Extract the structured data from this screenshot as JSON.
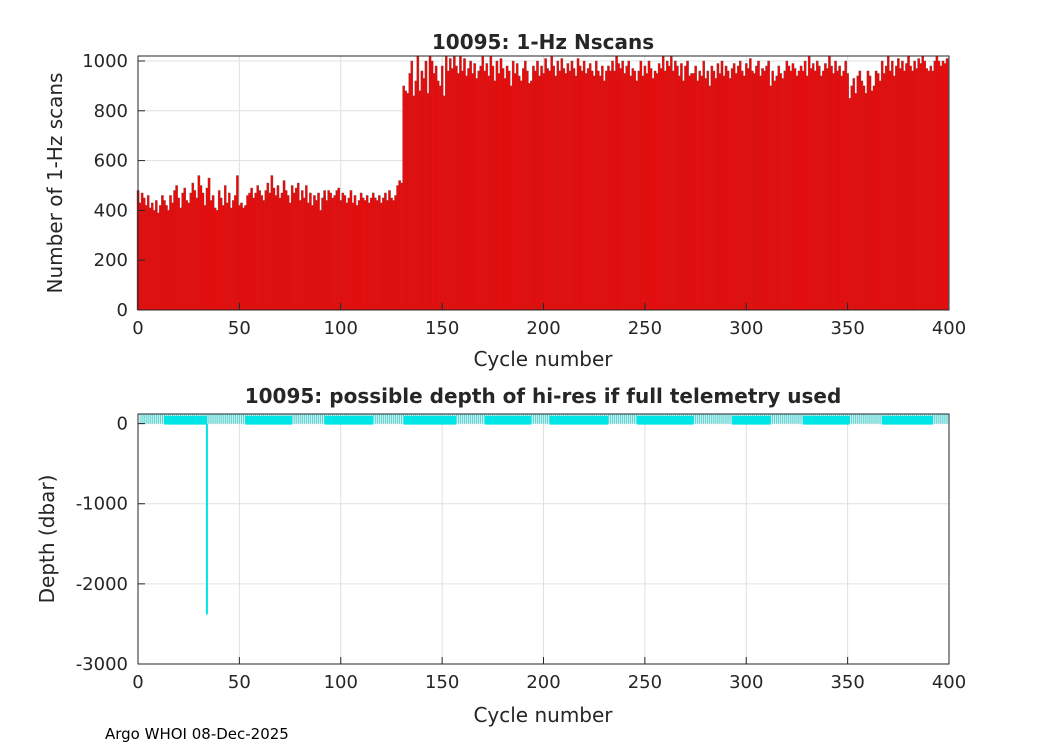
{
  "footer": "Argo WHOI 08-Dec-2025",
  "chart_data": [
    {
      "type": "bar",
      "title": "10095: 1-Hz Nscans",
      "xlabel": "Cycle number",
      "ylabel": "Number of 1-Hz scans",
      "xlim": [
        0,
        400
      ],
      "ylim": [
        0,
        1020
      ],
      "xticks": [
        "0",
        "50",
        "100",
        "150",
        "200",
        "250",
        "300",
        "350",
        "400"
      ],
      "yticks": [
        "0",
        "200",
        "400",
        "600",
        "800",
        "1000"
      ],
      "grid": true,
      "color": "#ff0000",
      "segments": [
        {
          "x_start": 0,
          "values": [
            480,
            430,
            470,
            450,
            420,
            460,
            410,
            430,
            400,
            440,
            390,
            420,
            460
          ]
        },
        {
          "x_start": 13,
          "values": [
            440,
            420,
            400,
            460,
            430,
            480,
            500,
            450,
            410,
            470,
            490,
            440,
            430,
            470,
            510,
            480,
            450,
            540,
            500,
            470,
            420,
            490,
            530,
            440,
            460,
            410,
            400
          ]
        },
        {
          "x_start": 40,
          "values": [
            480,
            450,
            420,
            500,
            430,
            470,
            410,
            440,
            460,
            540,
            420,
            430,
            410
          ]
        },
        {
          "x_start": 53,
          "values": [
            420,
            460,
            470,
            490,
            450,
            470,
            500,
            480,
            460,
            440,
            480,
            510,
            470,
            540,
            490,
            460,
            500,
            450,
            470,
            520,
            480,
            460,
            430
          ]
        },
        {
          "x_start": 76,
          "values": [
            500,
            470,
            490,
            510,
            440,
            480,
            450,
            500,
            430,
            470,
            420,
            460,
            440,
            470,
            400,
            450,
            480,
            440,
            430
          ]
        },
        {
          "x_start": 92,
          "values": [
            460,
            430,
            480,
            470,
            450,
            460,
            480,
            490,
            440,
            470,
            460,
            430,
            450,
            480,
            430,
            460,
            420,
            440,
            470,
            450,
            440,
            460,
            430,
            450
          ]
        },
        {
          "x_start": 116,
          "values": [
            470,
            450,
            440,
            460,
            430,
            450,
            470,
            440,
            480,
            450,
            440,
            460,
            500,
            520,
            510
          ]
        },
        {
          "x_start": 131,
          "values": [
            900,
            880,
            870,
            950,
            1000,
            860,
            920,
            1020,
            880,
            960,
            930,
            1000,
            870,
            1020,
            1000,
            950,
            980,
            920,
            900,
            980,
            860,
            1020,
            960,
            1010,
            970,
            1020
          ]
        },
        {
          "x_start": 157,
          "values": [
            980,
            950,
            1020,
            960,
            1010,
            940,
            970,
            1000,
            950,
            990,
            930,
            960,
            980,
            1020
          ]
        },
        {
          "x_start": 171,
          "values": [
            960,
            990,
            940,
            1020,
            980,
            920,
            1000,
            950,
            1010,
            970,
            930,
            980,
            960,
            900,
            1000,
            950,
            990,
            940,
            920,
            970,
            1000,
            960,
            910
          ]
        },
        {
          "x_start": 194,
          "values": [
            920,
            980,
            960,
            1000,
            940,
            980,
            950,
            1010,
            970
          ]
        },
        {
          "x_start": 203,
          "values": [
            960,
            1020,
            980,
            940,
            1000,
            960,
            1010,
            970,
            950,
            990,
            960,
            1000,
            970,
            940,
            1010,
            980,
            960,
            1000,
            950,
            970,
            990,
            960,
            940,
            1000,
            960,
            940,
            980,
            920,
            960
          ]
        },
        {
          "x_start": 232,
          "values": [
            980,
            960,
            1000,
            960,
            1020,
            990,
            970,
            1000,
            950,
            980,
            1000,
            940,
            970,
            960
          ]
        },
        {
          "x_start": 246,
          "values": [
            920,
            960,
            1000,
            940,
            980,
            950,
            1000,
            970,
            930,
            960,
            950,
            990,
            970,
            1020,
            960,
            1000,
            980,
            1020,
            960,
            1000,
            980,
            940,
            990,
            920,
            980,
            1000,
            940,
            950
          ]
        },
        {
          "x_start": 274,
          "values": [
            950,
            980,
            920,
            960,
            940,
            1000,
            930,
            960,
            900,
            980
          ]
        },
        {
          "x_start": 284,
          "values": [
            960,
            930,
            990,
            950,
            1000,
            940,
            980,
            960,
            930,
            970,
            990,
            950
          ]
        },
        {
          "x_start": 296,
          "values": [
            980,
            1000,
            960,
            940,
            990,
            970,
            1010,
            960,
            950,
            980,
            1000,
            940,
            970,
            960,
            980,
            1000
          ]
        },
        {
          "x_start": 312,
          "values": [
            900,
            960,
            920,
            940,
            980,
            950,
            930,
            960,
            1000,
            980,
            960,
            990,
            970,
            940,
            960,
            980
          ]
        },
        {
          "x_start": 328,
          "values": [
            960,
            1000,
            940,
            1020,
            970,
            990,
            960,
            1000,
            980,
            940,
            960,
            990,
            970,
            1020,
            980,
            950,
            1000,
            960,
            980,
            940,
            960,
            1000,
            950
          ]
        },
        {
          "x_start": 351,
          "values": [
            850,
            900,
            930,
            870,
            940,
            960,
            920,
            900,
            870,
            960,
            940,
            880,
            900,
            960,
            950,
            920
          ]
        },
        {
          "x_start": 367,
          "values": [
            1000,
            950,
            980,
            1020,
            960,
            1000,
            940,
            980,
            1010,
            970,
            1000,
            960,
            990,
            1020,
            980,
            960,
            1000,
            970,
            1010,
            990,
            1020,
            1000,
            970,
            960,
            980
          ]
        },
        {
          "x_start": 392,
          "values": [
            960,
            1000,
            1020,
            1000,
            980,
            1000,
            990,
            1010
          ]
        }
      ]
    },
    {
      "type": "line",
      "title": "10095: possible depth of hi-res if full telemetry used",
      "xlabel": "Cycle number",
      "ylabel": "Depth (dbar)",
      "xlim": [
        0,
        400
      ],
      "ylim": [
        -3000,
        120
      ],
      "xticks": [
        "0",
        "50",
        "100",
        "150",
        "200",
        "250",
        "300",
        "350",
        "400"
      ],
      "yticks": [
        "0",
        "-1000",
        "-2000",
        "-3000"
      ],
      "grid": true,
      "color": "#00e5e5",
      "band": {
        "x_start": 1,
        "x_end": 400,
        "y_top": 120,
        "y_bottom": 0
      },
      "solid_ranges": [
        [
          13,
          34
        ],
        [
          53,
          76
        ],
        [
          92,
          116
        ],
        [
          131,
          157
        ],
        [
          171,
          194
        ],
        [
          203,
          232
        ],
        [
          246,
          274
        ],
        [
          293,
          312
        ],
        [
          328,
          351
        ],
        [
          367,
          392
        ]
      ],
      "spike": {
        "x": 34,
        "y": -2380
      }
    }
  ]
}
